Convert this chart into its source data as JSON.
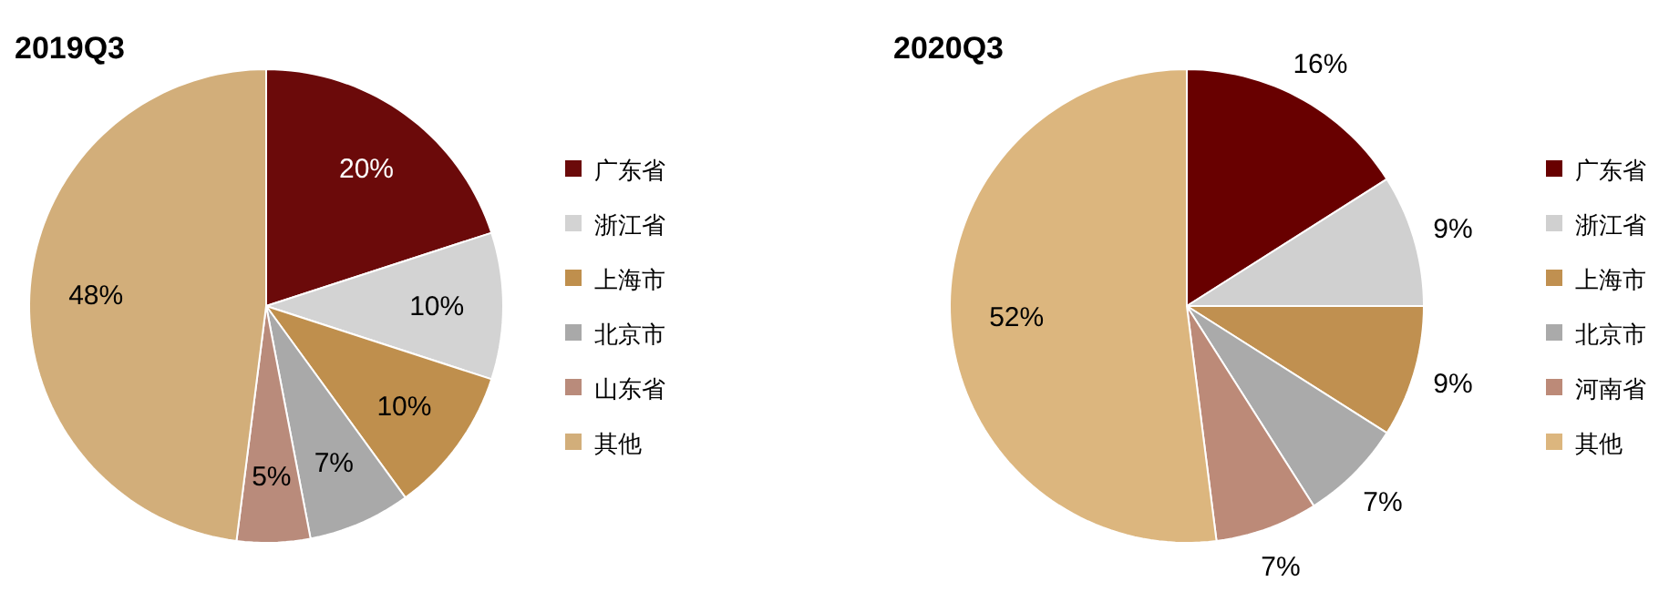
{
  "chart_data": [
    {
      "type": "pie",
      "title": "2019Q3",
      "categories": [
        "广东省",
        "浙江省",
        "上海市",
        "北京市",
        "山东省",
        "其他"
      ],
      "values": [
        20,
        10,
        10,
        7,
        5,
        48
      ],
      "colors": [
        "#6b0a0a",
        "#d3d3d3",
        "#bf8f4d",
        "#a9a9a9",
        "#b98b7b",
        "#d2ae7a"
      ],
      "value_labels": [
        "20%",
        "10%",
        "10%",
        "7%",
        "5%",
        "48%"
      ],
      "legend": "right"
    },
    {
      "type": "pie",
      "title": "2020Q3",
      "categories": [
        "广东省",
        "浙江省",
        "上海市",
        "北京市",
        "河南省",
        "其他"
      ],
      "values": [
        16,
        9,
        9,
        7,
        7,
        52
      ],
      "colors": [
        "#680000",
        "#d0d0d0",
        "#c09050",
        "#aaaaaa",
        "#bc8a78",
        "#dcb67e"
      ],
      "value_labels": [
        "16%",
        "9%",
        "9%",
        "7%",
        "7%",
        "52%"
      ],
      "legend": "right"
    }
  ]
}
